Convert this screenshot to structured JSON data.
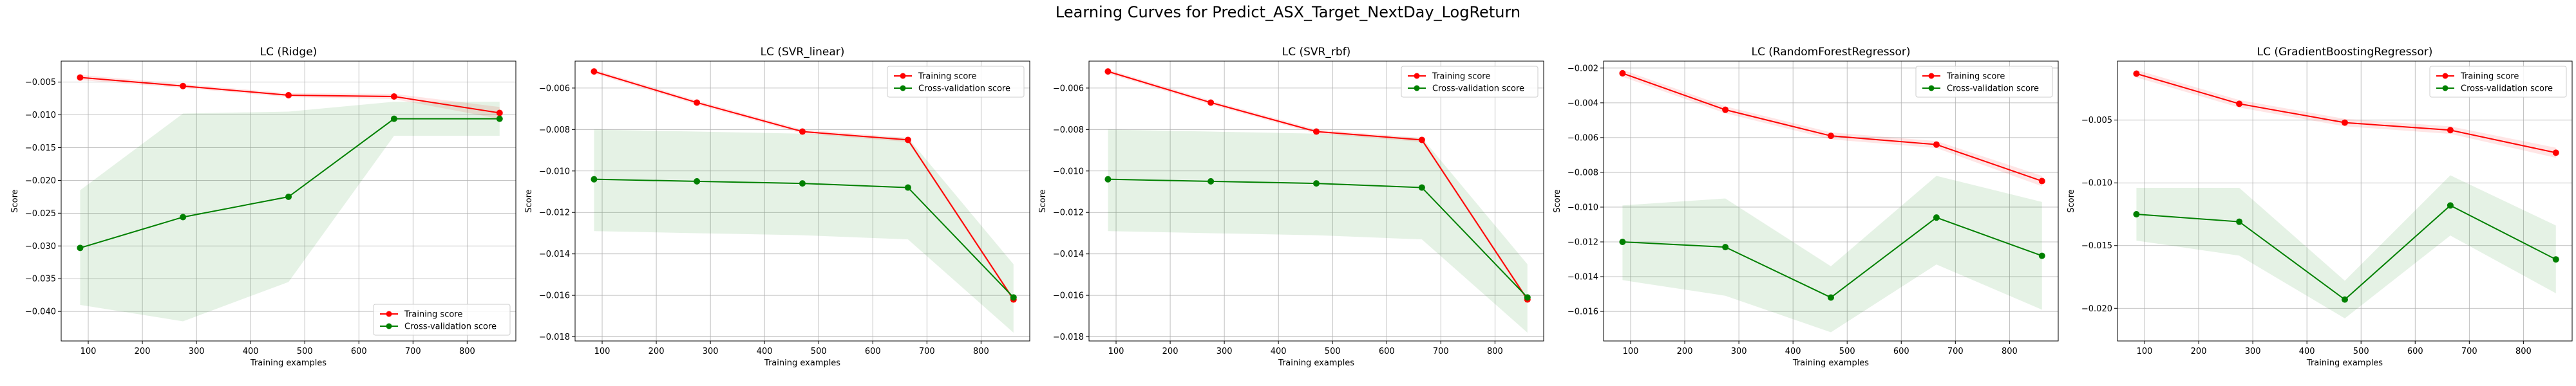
{
  "figure": {
    "title": "Learning Curves for Predict_ASX_Target_NextDay_LogReturn"
  },
  "colors": {
    "training": "#ff0000",
    "cross_validation": "#008000",
    "band_training": "#ff0000",
    "band_cv": "#008000",
    "grid": "#b0b0b0"
  },
  "chart_data": [
    {
      "type": "line",
      "title": "LC (Ridge)",
      "xlabel": "Training examples",
      "ylabel": "Score",
      "grid": true,
      "legend_loc": "bottom-right",
      "xlim": [
        50,
        890
      ],
      "ylim": [
        -0.0445,
        -0.0018
      ],
      "xticks": [
        100,
        200,
        300,
        400,
        500,
        600,
        700,
        800
      ],
      "yticks": [
        -0.04,
        -0.035,
        -0.03,
        -0.025,
        -0.02,
        -0.015,
        -0.01,
        -0.005
      ],
      "ytick_labels": [
        "−0.040",
        "−0.035",
        "−0.030",
        "−0.025",
        "−0.020",
        "−0.015",
        "−0.010",
        "−0.005"
      ],
      "x": [
        85,
        275,
        470,
        665,
        860
      ],
      "series": [
        {
          "name": "Training score",
          "key": "training",
          "values": [
            -0.0043,
            -0.0056,
            -0.007,
            -0.0072,
            -0.0097
          ],
          "band_lower": [
            -0.0047,
            -0.0059,
            -0.0073,
            -0.0076,
            -0.0106
          ],
          "band_upper": [
            -0.0039,
            -0.0053,
            -0.0067,
            -0.0068,
            -0.0088
          ]
        },
        {
          "name": "Cross-validation score",
          "key": "cross_validation",
          "values": [
            -0.0303,
            -0.0256,
            -0.0225,
            -0.0106,
            -0.0106
          ],
          "band_lower": [
            -0.039,
            -0.0415,
            -0.0355,
            -0.0132,
            -0.0132
          ],
          "band_upper": [
            -0.0215,
            -0.0098,
            -0.0095,
            -0.008,
            -0.008
          ]
        }
      ]
    },
    {
      "type": "line",
      "title": "LC (SVR_linear)",
      "xlabel": "Training examples",
      "ylabel": "Score",
      "grid": true,
      "legend_loc": "top-right",
      "xlim": [
        50,
        890
      ],
      "ylim": [
        -0.0182,
        -0.0047
      ],
      "xticks": [
        100,
        200,
        300,
        400,
        500,
        600,
        700,
        800
      ],
      "yticks": [
        -0.018,
        -0.016,
        -0.014,
        -0.012,
        -0.01,
        -0.008,
        -0.006
      ],
      "ytick_labels": [
        "−0.018",
        "−0.016",
        "−0.014",
        "−0.012",
        "−0.010",
        "−0.008",
        "−0.006"
      ],
      "x": [
        85,
        275,
        470,
        665,
        860
      ],
      "series": [
        {
          "name": "Training score",
          "key": "training",
          "values": [
            -0.0052,
            -0.0067,
            -0.0081,
            -0.0085,
            -0.0162
          ],
          "band_lower": [
            -0.0053,
            -0.0068,
            -0.0082,
            -0.0086,
            -0.0163
          ],
          "band_upper": [
            -0.0051,
            -0.0066,
            -0.008,
            -0.0084,
            -0.0161
          ]
        },
        {
          "name": "Cross-validation score",
          "key": "cross_validation",
          "values": [
            -0.0104,
            -0.0105,
            -0.0106,
            -0.0108,
            -0.0161
          ],
          "band_lower": [
            -0.0129,
            -0.013,
            -0.0131,
            -0.0133,
            -0.0178
          ],
          "band_upper": [
            -0.008,
            -0.0081,
            -0.0082,
            -0.0084,
            -0.0145
          ]
        }
      ]
    },
    {
      "type": "line",
      "title": "LC (SVR_rbf)",
      "xlabel": "Training examples",
      "ylabel": "Score",
      "grid": true,
      "legend_loc": "top-right",
      "xlim": [
        50,
        890
      ],
      "ylim": [
        -0.0182,
        -0.0047
      ],
      "xticks": [
        100,
        200,
        300,
        400,
        500,
        600,
        700,
        800
      ],
      "yticks": [
        -0.018,
        -0.016,
        -0.014,
        -0.012,
        -0.01,
        -0.008,
        -0.006
      ],
      "ytick_labels": [
        "−0.018",
        "−0.016",
        "−0.014",
        "−0.012",
        "−0.010",
        "−0.008",
        "−0.006"
      ],
      "x": [
        85,
        275,
        470,
        665,
        860
      ],
      "series": [
        {
          "name": "Training score",
          "key": "training",
          "values": [
            -0.0052,
            -0.0067,
            -0.0081,
            -0.0085,
            -0.0162
          ],
          "band_lower": [
            -0.0053,
            -0.0068,
            -0.0082,
            -0.0086,
            -0.0163
          ],
          "band_upper": [
            -0.0051,
            -0.0066,
            -0.008,
            -0.0084,
            -0.0161
          ]
        },
        {
          "name": "Cross-validation score",
          "key": "cross_validation",
          "values": [
            -0.0104,
            -0.0105,
            -0.0106,
            -0.0108,
            -0.0161
          ],
          "band_lower": [
            -0.0129,
            -0.013,
            -0.0131,
            -0.0133,
            -0.0178
          ],
          "band_upper": [
            -0.008,
            -0.0081,
            -0.0082,
            -0.0084,
            -0.0145
          ]
        }
      ]
    },
    {
      "type": "line",
      "title": "LC (RandomForestRegressor)",
      "xlabel": "Training examples",
      "ylabel": "Score",
      "grid": true,
      "legend_loc": "top-right",
      "xlim": [
        50,
        890
      ],
      "ylim": [
        -0.0177,
        -0.0016
      ],
      "xticks": [
        100,
        200,
        300,
        400,
        500,
        600,
        700,
        800
      ],
      "yticks": [
        -0.016,
        -0.014,
        -0.012,
        -0.01,
        -0.008,
        -0.006,
        -0.004,
        -0.002
      ],
      "ytick_labels": [
        "−0.016",
        "−0.014",
        "−0.012",
        "−0.010",
        "−0.008",
        "−0.006",
        "−0.004",
        "−0.002"
      ],
      "x": [
        85,
        275,
        470,
        665,
        860
      ],
      "series": [
        {
          "name": "Training score",
          "key": "training",
          "values": [
            -0.0023,
            -0.0044,
            -0.0059,
            -0.0064,
            -0.0085
          ],
          "band_lower": [
            -0.0025,
            -0.0046,
            -0.0061,
            -0.0066,
            -0.0088
          ],
          "band_upper": [
            -0.0021,
            -0.0042,
            -0.0057,
            -0.0062,
            -0.0082
          ]
        },
        {
          "name": "Cross-validation score",
          "key": "cross_validation",
          "values": [
            -0.012,
            -0.0123,
            -0.0152,
            -0.0106,
            -0.0128
          ],
          "band_lower": [
            -0.0142,
            -0.0151,
            -0.0172,
            -0.0133,
            -0.0159
          ],
          "band_upper": [
            -0.0099,
            -0.0095,
            -0.0134,
            -0.0082,
            -0.0097
          ]
        }
      ]
    },
    {
      "type": "line",
      "title": "LC (GradientBoostingRegressor)",
      "xlabel": "Training examples",
      "ylabel": "Score",
      "grid": true,
      "legend_loc": "top-right",
      "xlim": [
        50,
        890
      ],
      "ylim": [
        -0.0226,
        -0.0003
      ],
      "xticks": [
        100,
        200,
        300,
        400,
        500,
        600,
        700,
        800
      ],
      "yticks": [
        -0.02,
        -0.015,
        -0.01,
        -0.005
      ],
      "ytick_labels": [
        "−0.020",
        "−0.015",
        "−0.010",
        "−0.005"
      ],
      "x": [
        85,
        275,
        470,
        665,
        860
      ],
      "series": [
        {
          "name": "Training score",
          "key": "training",
          "values": [
            -0.0013,
            -0.0037,
            -0.0052,
            -0.0058,
            -0.0076
          ],
          "band_lower": [
            -0.0016,
            -0.004,
            -0.0055,
            -0.0061,
            -0.008
          ],
          "band_upper": [
            -0.001,
            -0.0034,
            -0.0049,
            -0.0055,
            -0.0072
          ]
        },
        {
          "name": "Cross-validation score",
          "key": "cross_validation",
          "values": [
            -0.0125,
            -0.0131,
            -0.0193,
            -0.0118,
            -0.0161
          ],
          "band_lower": [
            -0.0146,
            -0.0158,
            -0.0208,
            -0.0142,
            -0.0188
          ],
          "band_upper": [
            -0.0104,
            -0.0104,
            -0.0178,
            -0.0094,
            -0.0134
          ]
        }
      ]
    }
  ]
}
